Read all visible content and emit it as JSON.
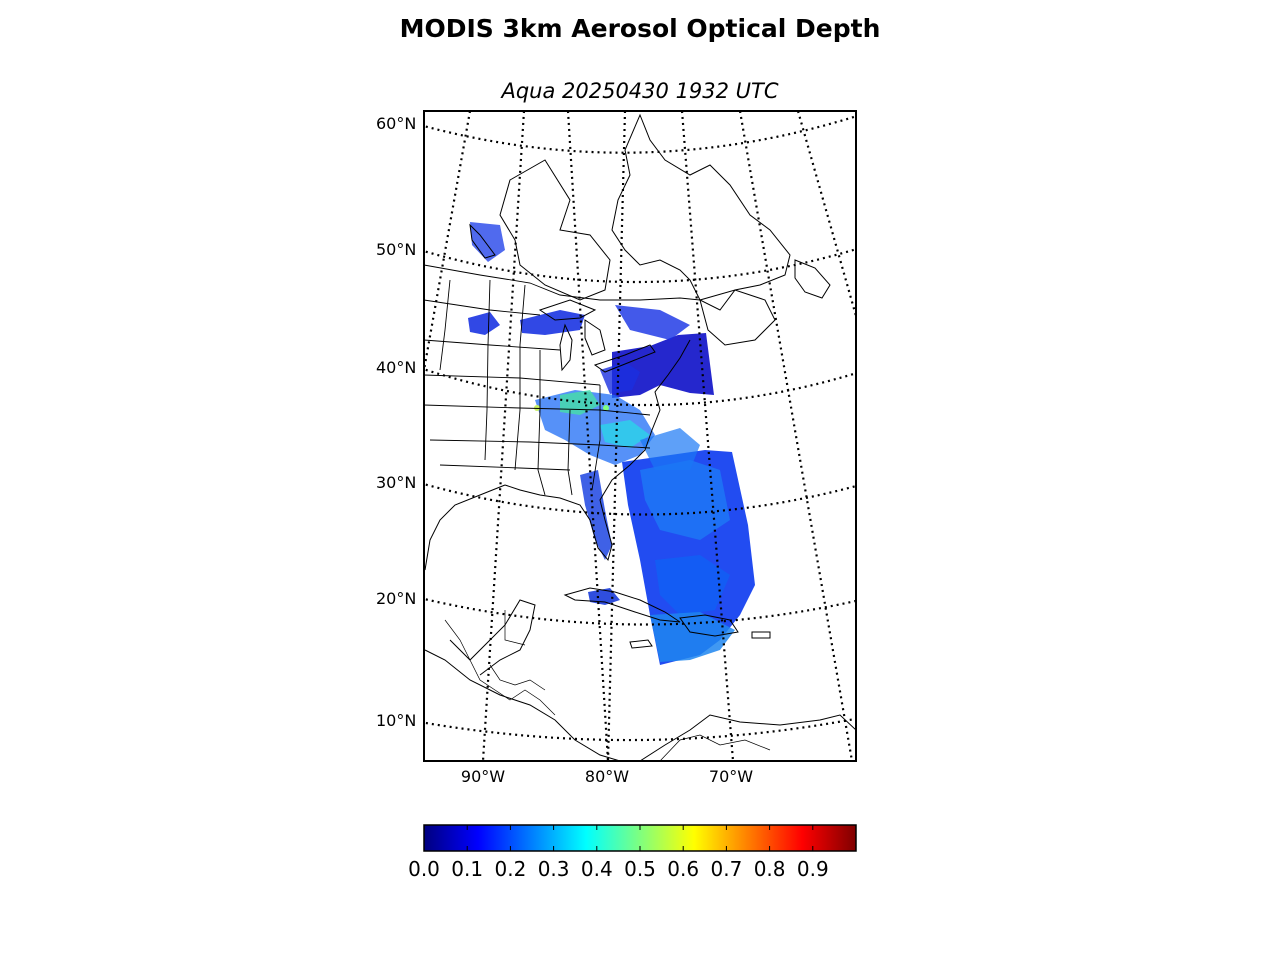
{
  "title": "MODIS 3km Aerosol Optical Depth",
  "subtitle": "Aqua 20250430 1932 UTC",
  "map": {
    "parallels": [
      {
        "label": "60°N"
      },
      {
        "label": "50°N"
      },
      {
        "label": "40°N"
      },
      {
        "label": "30°N"
      },
      {
        "label": "20°N"
      },
      {
        "label": "10°N"
      }
    ],
    "meridians": [
      {
        "label": "90°W"
      },
      {
        "label": "80°W"
      },
      {
        "label": "70°W"
      }
    ]
  },
  "colorbar": {
    "min": 0.0,
    "max": 1.0,
    "ticks": [
      "0.0",
      "0.1",
      "0.2",
      "0.3",
      "0.4",
      "0.5",
      "0.6",
      "0.7",
      "0.8",
      "0.9"
    ],
    "colormap": [
      "#00007f",
      "#0000ff",
      "#007fff",
      "#00ffff",
      "#7fff7f",
      "#ffff00",
      "#ff7f00",
      "#ff0000",
      "#7f0000"
    ]
  }
}
